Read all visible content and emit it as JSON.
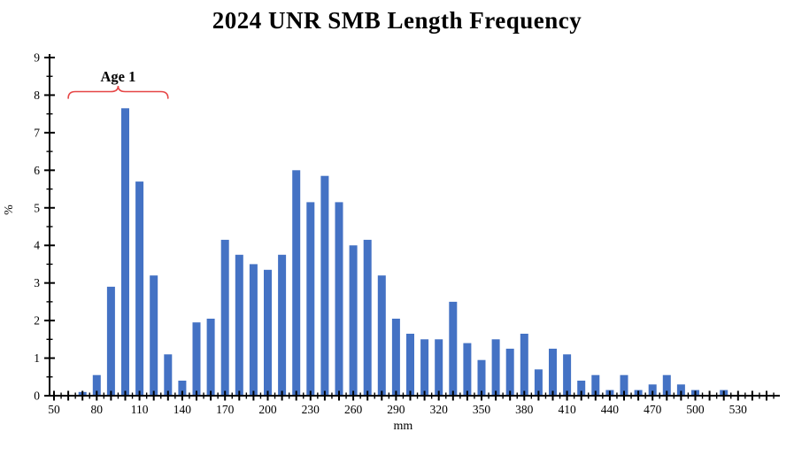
{
  "title": "2024 UNR SMB Length Frequency",
  "annotation": {
    "label": "Age 1",
    "range_mm": [
      60,
      130
    ],
    "brace_color": "#e64545",
    "label_color": "#000000"
  },
  "chart_data": {
    "type": "bar",
    "title": "2024 UNR SMB Length Frequency",
    "xlabel": "mm",
    "ylabel": "%",
    "bar_color": "#4472C4",
    "axis_color": "#000000",
    "grid": false,
    "legend": false,
    "ylim": [
      0,
      9
    ],
    "y_major_step": 1,
    "y_minor_step": 0.5,
    "y_tick_labels": [
      "0",
      "1",
      "2",
      "3",
      "4",
      "5",
      "6",
      "7",
      "8",
      "9"
    ],
    "x_axis_start_mm": 50,
    "x_axis_end_mm": 555,
    "x_minor_step_mm": 5,
    "x_major_step_mm": 10,
    "x_label_step_mm": 30,
    "x_tick_labels": [
      "50",
      "80",
      "110",
      "140",
      "170",
      "200",
      "230",
      "260",
      "290",
      "320",
      "350",
      "380",
      "410",
      "440",
      "470",
      "500",
      "530"
    ],
    "bin_width_mm": 10,
    "categories": [
      50,
      60,
      70,
      80,
      90,
      100,
      110,
      120,
      130,
      140,
      150,
      160,
      170,
      180,
      190,
      200,
      210,
      220,
      230,
      240,
      250,
      260,
      270,
      280,
      290,
      300,
      310,
      320,
      330,
      340,
      350,
      360,
      370,
      380,
      390,
      400,
      410,
      420,
      430,
      440,
      450,
      460,
      470,
      480,
      490,
      500,
      510,
      520,
      530,
      540,
      550
    ],
    "values": [
      0,
      0,
      0.1,
      0.55,
      2.9,
      7.65,
      5.7,
      3.2,
      1.1,
      0.4,
      1.95,
      2.05,
      4.15,
      3.75,
      3.5,
      3.35,
      3.75,
      6.0,
      5.15,
      5.85,
      5.15,
      4.0,
      4.15,
      3.2,
      2.05,
      1.65,
      1.5,
      1.5,
      2.5,
      1.4,
      0.95,
      1.5,
      1.25,
      1.65,
      0.7,
      1.25,
      1.1,
      0.4,
      0.55,
      0.15,
      0.55,
      0.15,
      0.3,
      0.55,
      0.3,
      0.15,
      0,
      0.15,
      0,
      0,
      0
    ]
  }
}
